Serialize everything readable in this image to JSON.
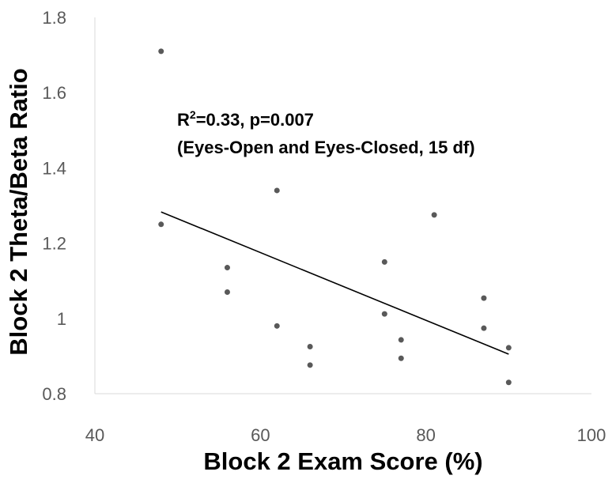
{
  "chart_data": {
    "type": "scatter",
    "title": "",
    "xlabel": "Block 2 Exam Score (%)",
    "ylabel": "Block 2 Theta/Beta Ratio",
    "xlim": [
      40,
      100
    ],
    "ylim": [
      0.8,
      1.8
    ],
    "xticks": [
      "40",
      "60",
      "80",
      "100"
    ],
    "xtick_values": [
      40,
      60,
      80,
      100
    ],
    "yticks": [
      "0.8",
      "1",
      "1.2",
      "1.4",
      "1.6",
      "1.8"
    ],
    "ytick_values": [
      0.8,
      1.0,
      1.2,
      1.4,
      1.6,
      1.8
    ],
    "grid": false,
    "points": [
      {
        "x": 48,
        "y": 1.71
      },
      {
        "x": 48,
        "y": 1.25
      },
      {
        "x": 56,
        "y": 1.135
      },
      {
        "x": 56,
        "y": 1.07
      },
      {
        "x": 62,
        "y": 1.34
      },
      {
        "x": 62,
        "y": 0.98
      },
      {
        "x": 66,
        "y": 0.925
      },
      {
        "x": 66,
        "y": 0.876
      },
      {
        "x": 75,
        "y": 1.15
      },
      {
        "x": 75,
        "y": 1.012
      },
      {
        "x": 77,
        "y": 0.943
      },
      {
        "x": 77,
        "y": 0.894
      },
      {
        "x": 81,
        "y": 1.275
      },
      {
        "x": 87,
        "y": 1.054
      },
      {
        "x": 87,
        "y": 0.974
      },
      {
        "x": 90,
        "y": 0.922
      },
      {
        "x": 90,
        "y": 0.83
      }
    ],
    "trendline": {
      "x": [
        48,
        90
      ],
      "y": [
        1.283,
        0.905
      ]
    },
    "annotation": {
      "line1_prefix": "R",
      "line1_sup": "2",
      "line1_rest": "=0.33, p=0.007",
      "line2": "(Eyes-Open and Eyes-Closed, 15 df)"
    },
    "colors": {
      "point": "#595959",
      "trendline": "#000000",
      "axis": "#d9d9d9"
    }
  }
}
